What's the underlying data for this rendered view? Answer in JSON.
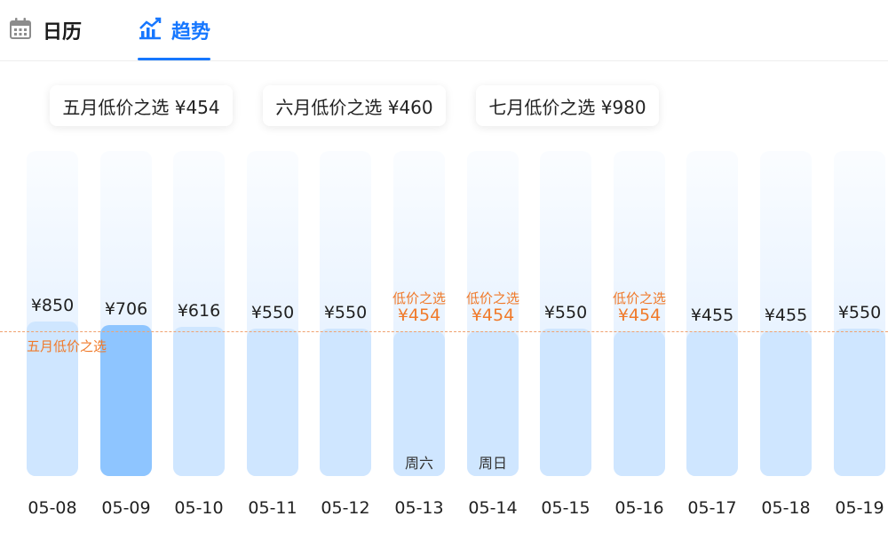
{
  "tabs": [
    {
      "label": "日历",
      "icon": "calendar-icon",
      "active": false
    },
    {
      "label": "趋势",
      "icon": "trend-chart-icon",
      "active": true
    }
  ],
  "accent_color": "#1677ff",
  "low_price_color": "#f07a2a",
  "monthly_lows": [
    {
      "label": "五月低价之选 ¥454"
    },
    {
      "label": "六月低价之选 ¥460"
    },
    {
      "label": "七月低价之选 ¥980"
    }
  ],
  "reference_line_label": "五月低价之选",
  "days": [
    {
      "date": "05-08",
      "price": "¥850",
      "value": 850,
      "low_label": "",
      "weekday": "",
      "selected": false
    },
    {
      "date": "05-09",
      "price": "¥706",
      "value": 706,
      "low_label": "",
      "weekday": "",
      "selected": true
    },
    {
      "date": "05-10",
      "price": "¥616",
      "value": 616,
      "low_label": "",
      "weekday": "",
      "selected": false
    },
    {
      "date": "05-11",
      "price": "¥550",
      "value": 550,
      "low_label": "",
      "weekday": "",
      "selected": false
    },
    {
      "date": "05-12",
      "price": "¥550",
      "value": 550,
      "low_label": "",
      "weekday": "",
      "selected": false
    },
    {
      "date": "05-13",
      "price": "¥454",
      "value": 454,
      "low_label": "低价之选",
      "weekday": "周六",
      "selected": false
    },
    {
      "date": "05-14",
      "price": "¥454",
      "value": 454,
      "low_label": "低价之选",
      "weekday": "周日",
      "selected": false
    },
    {
      "date": "05-15",
      "price": "¥550",
      "value": 550,
      "low_label": "",
      "weekday": "",
      "selected": false
    },
    {
      "date": "05-16",
      "price": "¥454",
      "value": 454,
      "low_label": "低价之选",
      "weekday": "",
      "selected": false
    },
    {
      "date": "05-17",
      "price": "¥455",
      "value": 455,
      "low_label": "",
      "weekday": "",
      "selected": false
    },
    {
      "date": "05-18",
      "price": "¥455",
      "value": 455,
      "low_label": "",
      "weekday": "",
      "selected": false
    },
    {
      "date": "05-19",
      "price": "¥550",
      "value": 550,
      "low_label": "",
      "weekday": "",
      "selected": false
    }
  ]
}
